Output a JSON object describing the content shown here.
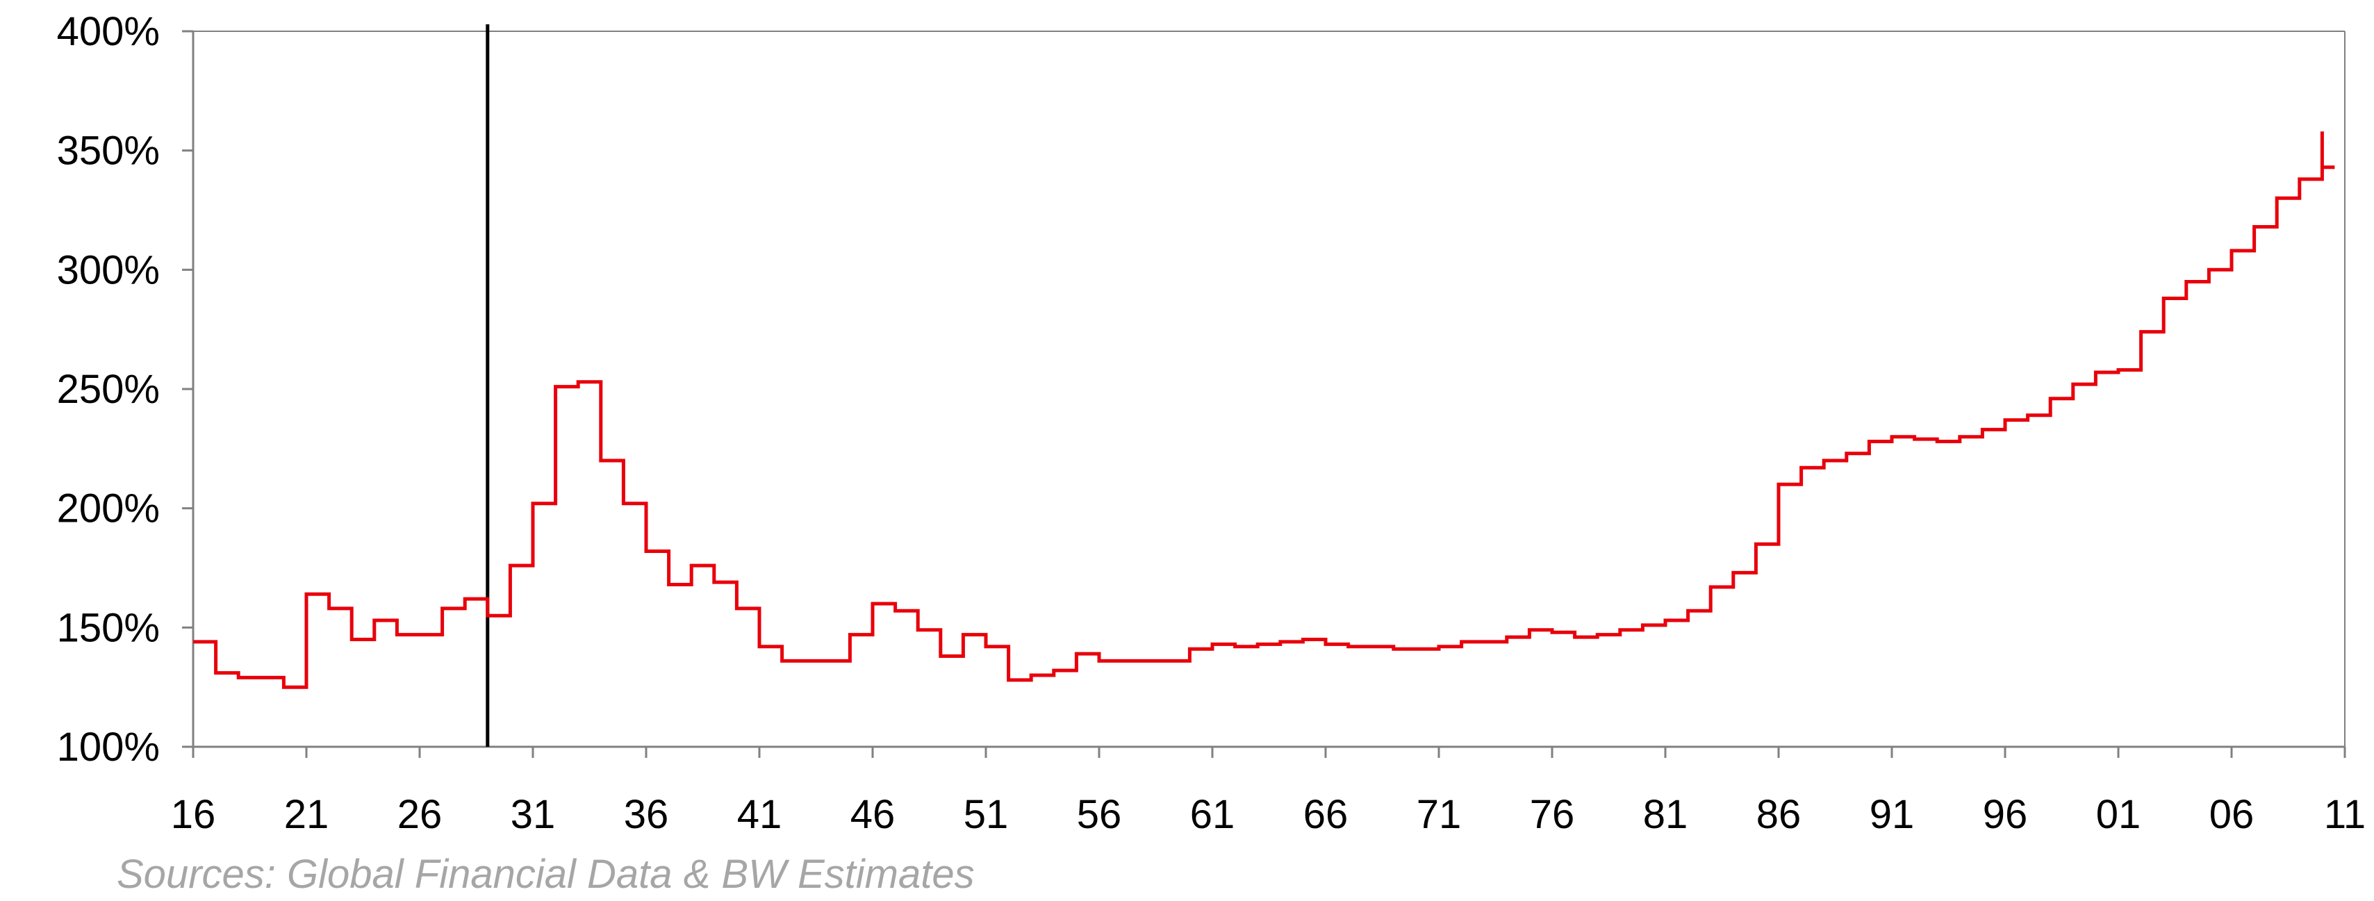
{
  "chart_data": {
    "type": "line",
    "title": "",
    "xlabel": "",
    "ylabel": "",
    "x_tick_labels": [
      "16",
      "21",
      "26",
      "31",
      "36",
      "41",
      "46",
      "51",
      "56",
      "61",
      "66",
      "71",
      "76",
      "81",
      "86",
      "91",
      "96",
      "01",
      "06",
      "11"
    ],
    "x_ticks": [
      1916,
      1921,
      1926,
      1931,
      1936,
      1941,
      1946,
      1951,
      1956,
      1961,
      1966,
      1971,
      1976,
      1981,
      1986,
      1991,
      1996,
      2001,
      2006,
      2011
    ],
    "xlim": [
      1916,
      2011
    ],
    "y_tick_labels": [
      "100%",
      "150%",
      "200%",
      "250%",
      "300%",
      "350%",
      "400%"
    ],
    "y_ticks": [
      100,
      150,
      200,
      250,
      300,
      350,
      400
    ],
    "ylim": [
      100,
      400
    ],
    "grid": false,
    "step_line": true,
    "vertical_marker_x": 1929,
    "series": [
      {
        "color": "#e8000b",
        "x": [
          1916,
          1917,
          1918,
          1919,
          1920,
          1921,
          1922,
          1923,
          1924,
          1925,
          1926,
          1927,
          1928,
          1929,
          1930,
          1931,
          1932,
          1933,
          1934,
          1935,
          1936,
          1937,
          1938,
          1939,
          1940,
          1941,
          1942,
          1943,
          1944,
          1945,
          1946,
          1947,
          1948,
          1949,
          1950,
          1951,
          1952,
          1953,
          1954,
          1955,
          1956,
          1957,
          1958,
          1959,
          1960,
          1961,
          1962,
          1963,
          1964,
          1965,
          1966,
          1967,
          1968,
          1969,
          1970,
          1971,
          1972,
          1973,
          1974,
          1975,
          1976,
          1977,
          1978,
          1979,
          1980,
          1981,
          1982,
          1983,
          1984,
          1985,
          1986,
          1987,
          1988,
          1989,
          1990,
          1991,
          1992,
          1993,
          1994,
          1995,
          1996,
          1997,
          1998,
          1999,
          2000,
          2001,
          2002,
          2003,
          2004,
          2005,
          2006,
          2007,
          2008,
          2009,
          2010
        ],
        "y": [
          144,
          131,
          129,
          129,
          125,
          164,
          158,
          145,
          153,
          147,
          147,
          158,
          162,
          155,
          176,
          202,
          251,
          253,
          220,
          202,
          182,
          168,
          176,
          169,
          158,
          142,
          136,
          136,
          136,
          147,
          160,
          157,
          149,
          138,
          147,
          142,
          128,
          130,
          132,
          139,
          136,
          136,
          136,
          136,
          141,
          143,
          142,
          143,
          144,
          145,
          143,
          142,
          142,
          141,
          141,
          142,
          144,
          144,
          146,
          149,
          148,
          146,
          147,
          149,
          151,
          153,
          157,
          167,
          173,
          185,
          210,
          217,
          220,
          223,
          228,
          230,
          229,
          228,
          230,
          233,
          237,
          239,
          246,
          252,
          257,
          258,
          274,
          288,
          295,
          300,
          308,
          318,
          330,
          338,
          358
        ]
      }
    ]
  },
  "source_note": "Sources: Global Financial Data & BW Estimates"
}
